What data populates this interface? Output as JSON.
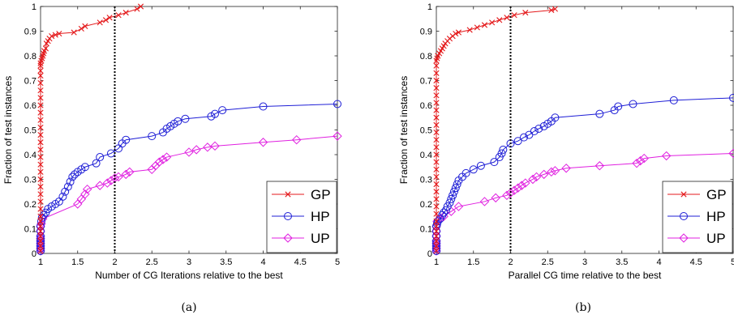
{
  "colors": {
    "GP": "#e41a1c",
    "HP": "#1f1fd6",
    "UP": "#e020e0",
    "axis": "#222222",
    "vline": "#000000"
  },
  "chart_data": [
    {
      "type": "line",
      "panel_label": "(a)",
      "xlabel": "Number of CG Iterations relative to the best",
      "ylabel": "Fraction of test instances",
      "xlim": [
        1,
        5
      ],
      "ylim": [
        0,
        1
      ],
      "xticks": [
        1,
        1.5,
        2,
        2.5,
        3,
        3.5,
        4,
        4.5,
        5
      ],
      "xtick_labels": [
        "1",
        "1.5",
        "2",
        "2.5",
        "3",
        "3.5",
        "4",
        "4.5",
        "5"
      ],
      "yticks": [
        0,
        0.1,
        0.2,
        0.3,
        0.4,
        0.5,
        0.6,
        0.7,
        0.8,
        0.9,
        1
      ],
      "ytick_labels": [
        "0",
        "0.1",
        "0.2",
        "0.3",
        "0.4",
        "0.5",
        "0.6",
        "0.7",
        "0.8",
        "0.9",
        "1"
      ],
      "vline_x": 2,
      "legend_position": "bottom-right",
      "grid": false,
      "series": [
        {
          "name": "GP",
          "marker": "x",
          "x": [
            1,
            1,
            1,
            1,
            1,
            1,
            1,
            1,
            1,
            1,
            1,
            1,
            1,
            1,
            1,
            1,
            1,
            1,
            1,
            1,
            1,
            1,
            1,
            1,
            1,
            1,
            1,
            1,
            1,
            1,
            1.01,
            1.02,
            1.03,
            1.04,
            1.05,
            1.07,
            1.08,
            1.1,
            1.12,
            1.15,
            1.2,
            1.25,
            1.45,
            1.55,
            1.6,
            1.8,
            1.88,
            1.93,
            2.05,
            2.15,
            2.3,
            2.35
          ],
          "y": [
            0.01,
            0.03,
            0.05,
            0.07,
            0.09,
            0.11,
            0.13,
            0.15,
            0.18,
            0.21,
            0.24,
            0.27,
            0.3,
            0.33,
            0.36,
            0.39,
            0.42,
            0.45,
            0.48,
            0.51,
            0.54,
            0.57,
            0.6,
            0.63,
            0.66,
            0.69,
            0.72,
            0.74,
            0.76,
            0.77,
            0.78,
            0.79,
            0.8,
            0.81,
            0.82,
            0.83,
            0.85,
            0.86,
            0.87,
            0.88,
            0.885,
            0.89,
            0.895,
            0.91,
            0.92,
            0.935,
            0.945,
            0.955,
            0.965,
            0.975,
            0.99,
            1.0
          ]
        },
        {
          "name": "HP",
          "marker": "o",
          "x": [
            1,
            1,
            1,
            1,
            1,
            1,
            1,
            1,
            1,
            1.01,
            1.02,
            1.04,
            1.07,
            1.1,
            1.15,
            1.2,
            1.25,
            1.3,
            1.33,
            1.37,
            1.4,
            1.43,
            1.46,
            1.5,
            1.55,
            1.6,
            1.75,
            1.8,
            1.95,
            2.05,
            2.1,
            2.15,
            2.5,
            2.65,
            2.7,
            2.75,
            2.8,
            2.85,
            2.95,
            3.3,
            3.35,
            3.45,
            4.0,
            5.0
          ],
          "y": [
            0.01,
            0.02,
            0.03,
            0.04,
            0.05,
            0.06,
            0.07,
            0.09,
            0.11,
            0.13,
            0.145,
            0.155,
            0.165,
            0.18,
            0.19,
            0.2,
            0.21,
            0.23,
            0.25,
            0.27,
            0.29,
            0.31,
            0.32,
            0.33,
            0.34,
            0.35,
            0.365,
            0.39,
            0.405,
            0.425,
            0.445,
            0.46,
            0.475,
            0.49,
            0.505,
            0.515,
            0.525,
            0.535,
            0.545,
            0.555,
            0.565,
            0.58,
            0.595,
            0.605
          ]
        },
        {
          "name": "UP",
          "marker": "diamond",
          "x": [
            1,
            1,
            1,
            1,
            1,
            1,
            1,
            1,
            1,
            1.01,
            1.03,
            1.5,
            1.55,
            1.6,
            1.63,
            1.8,
            1.9,
            1.95,
            2.0,
            2.05,
            2.15,
            2.2,
            2.5,
            2.55,
            2.6,
            2.65,
            2.7,
            3.0,
            3.1,
            3.25,
            3.35,
            4.0,
            4.45,
            5.0
          ],
          "y": [
            0.01,
            0.02,
            0.03,
            0.04,
            0.05,
            0.06,
            0.07,
            0.09,
            0.11,
            0.12,
            0.14,
            0.2,
            0.22,
            0.24,
            0.26,
            0.275,
            0.285,
            0.295,
            0.305,
            0.31,
            0.32,
            0.33,
            0.34,
            0.355,
            0.37,
            0.38,
            0.39,
            0.41,
            0.42,
            0.43,
            0.435,
            0.45,
            0.46,
            0.475
          ]
        }
      ]
    },
    {
      "type": "line",
      "panel_label": "(b)",
      "xlabel": "Parallel CG time relative to the best",
      "ylabel": "Fraction of test instances",
      "xlim": [
        1,
        5
      ],
      "ylim": [
        0,
        1
      ],
      "xticks": [
        1,
        1.5,
        2,
        2.5,
        3,
        3.5,
        4,
        4.5,
        5
      ],
      "xtick_labels": [
        "1",
        "1.5",
        "2",
        "2.5",
        "3",
        "3.5",
        "4",
        "4.5",
        "5"
      ],
      "yticks": [
        0,
        0.1,
        0.2,
        0.3,
        0.4,
        0.5,
        0.6,
        0.7,
        0.8,
        0.9,
        1
      ],
      "ytick_labels": [
        "0",
        "0.1",
        "0.2",
        "0.3",
        "0.4",
        "0.5",
        "0.6",
        "0.7",
        "0.8",
        "0.9",
        "1"
      ],
      "vline_x": 2,
      "legend_position": "bottom-right",
      "grid": false,
      "series": [
        {
          "name": "GP",
          "marker": "x",
          "x": [
            1,
            1,
            1,
            1,
            1,
            1,
            1,
            1,
            1,
            1,
            1,
            1,
            1,
            1,
            1,
            1,
            1,
            1,
            1,
            1,
            1,
            1,
            1,
            1,
            1,
            1,
            1,
            1,
            1,
            1.01,
            1.02,
            1.04,
            1.06,
            1.08,
            1.1,
            1.12,
            1.15,
            1.18,
            1.22,
            1.26,
            1.3,
            1.45,
            1.55,
            1.65,
            1.75,
            1.85,
            1.95,
            2.05,
            2.2,
            2.55,
            2.6
          ],
          "y": [
            0.01,
            0.03,
            0.05,
            0.07,
            0.09,
            0.11,
            0.13,
            0.16,
            0.19,
            0.22,
            0.25,
            0.28,
            0.31,
            0.34,
            0.37,
            0.4,
            0.43,
            0.46,
            0.49,
            0.52,
            0.55,
            0.58,
            0.61,
            0.64,
            0.67,
            0.7,
            0.73,
            0.76,
            0.78,
            0.79,
            0.8,
            0.81,
            0.82,
            0.83,
            0.84,
            0.85,
            0.86,
            0.87,
            0.88,
            0.89,
            0.895,
            0.905,
            0.915,
            0.925,
            0.935,
            0.945,
            0.955,
            0.965,
            0.975,
            0.985,
            0.99
          ]
        },
        {
          "name": "HP",
          "marker": "o",
          "x": [
            1,
            1,
            1,
            1,
            1,
            1,
            1,
            1,
            1.01,
            1.02,
            1.05,
            1.08,
            1.1,
            1.13,
            1.15,
            1.18,
            1.2,
            1.22,
            1.24,
            1.26,
            1.28,
            1.3,
            1.35,
            1.4,
            1.5,
            1.6,
            1.78,
            1.85,
            1.88,
            1.9,
            2.0,
            2.1,
            2.18,
            2.25,
            2.32,
            2.38,
            2.45,
            2.5,
            2.55,
            2.6,
            3.2,
            3.4,
            3.45,
            3.65,
            4.2,
            5.0
          ],
          "y": [
            0.01,
            0.02,
            0.03,
            0.04,
            0.05,
            0.07,
            0.09,
            0.11,
            0.12,
            0.13,
            0.14,
            0.155,
            0.165,
            0.175,
            0.19,
            0.205,
            0.22,
            0.235,
            0.25,
            0.265,
            0.28,
            0.295,
            0.31,
            0.325,
            0.34,
            0.355,
            0.37,
            0.39,
            0.405,
            0.42,
            0.445,
            0.455,
            0.47,
            0.48,
            0.495,
            0.505,
            0.515,
            0.525,
            0.535,
            0.55,
            0.565,
            0.58,
            0.595,
            0.605,
            0.62,
            0.63
          ]
        },
        {
          "name": "UP",
          "marker": "diamond",
          "x": [
            1,
            1,
            1,
            1,
            1,
            1,
            1,
            1,
            1.01,
            1.05,
            1.1,
            1.2,
            1.3,
            1.65,
            1.8,
            1.95,
            2.0,
            2.05,
            2.1,
            2.15,
            2.2,
            2.3,
            2.35,
            2.45,
            2.55,
            2.6,
            2.75,
            3.2,
            3.7,
            3.75,
            3.8,
            4.1,
            5.0
          ],
          "y": [
            0.01,
            0.02,
            0.03,
            0.04,
            0.05,
            0.07,
            0.09,
            0.11,
            0.13,
            0.14,
            0.15,
            0.17,
            0.19,
            0.21,
            0.225,
            0.235,
            0.245,
            0.255,
            0.265,
            0.275,
            0.285,
            0.3,
            0.31,
            0.32,
            0.33,
            0.335,
            0.345,
            0.355,
            0.365,
            0.375,
            0.385,
            0.395,
            0.405
          ]
        }
      ]
    }
  ]
}
